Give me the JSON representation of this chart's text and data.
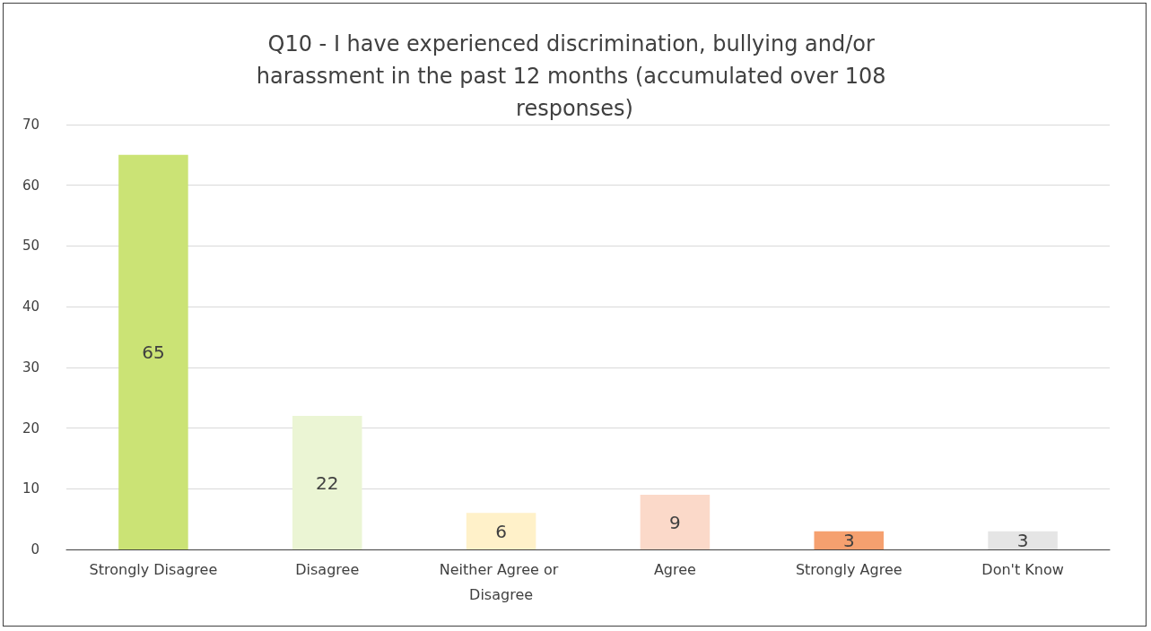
{
  "chart_data": {
    "type": "bar",
    "title": "Q10 - I have experienced discrimination, bullying and/or harassment in the past 12 months (accumulated over 108 responses)",
    "categories": [
      "Strongly Disagree",
      "Disagree",
      "Neither Agree or Disagree",
      "Agree",
      "Strongly Agree",
      "Don't Know"
    ],
    "values": [
      65,
      22,
      6,
      9,
      3,
      3
    ],
    "colors": [
      "#cbe375",
      "#ebf5d4",
      "#fff1c9",
      "#fbd9c9",
      "#f5a06f",
      "#e5e5e5"
    ],
    "ylim": [
      0,
      70
    ],
    "yticks": [
      0,
      10,
      20,
      30,
      40,
      50,
      60,
      70
    ],
    "grid": "y",
    "data_labels": true
  }
}
